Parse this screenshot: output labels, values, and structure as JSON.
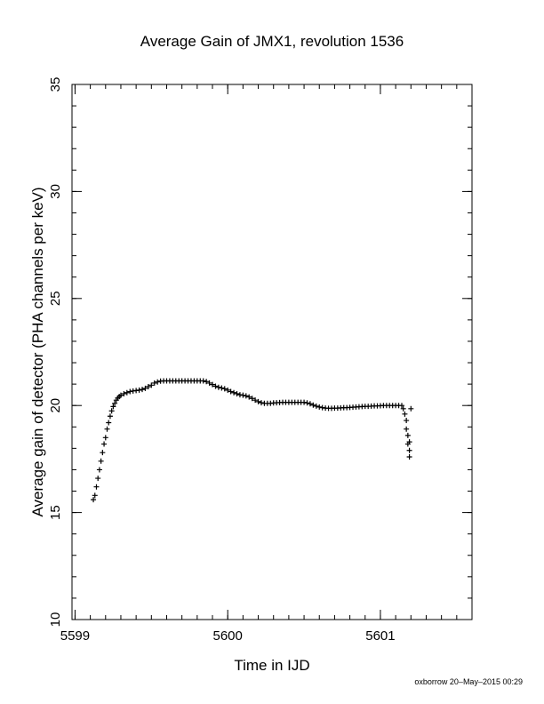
{
  "chart_data": {
    "type": "scatter",
    "title": "Average Gain of JMX1, revolution 1536",
    "xlabel": "Time in IJD",
    "ylabel": "Average gain of detector (PHA channels per keV)",
    "xlim": [
      5598.98,
      5601.6
    ],
    "ylim": [
      10,
      35
    ],
    "x_ticks": [
      5599,
      5600,
      5601
    ],
    "y_ticks": [
      10,
      15,
      20,
      25,
      30,
      35
    ],
    "x_minor_step": 0.1,
    "y_minor_step": 1,
    "grid": false,
    "legend": "none",
    "marker": "plus",
    "marker_color": "#000000",
    "series": [
      {
        "points": [
          [
            5599.12,
            15.6
          ],
          [
            5599.13,
            15.8
          ],
          [
            5599.14,
            16.2
          ],
          [
            5599.15,
            16.6
          ],
          [
            5599.16,
            17.0
          ],
          [
            5599.17,
            17.4
          ],
          [
            5599.18,
            17.8
          ],
          [
            5599.19,
            18.2
          ],
          [
            5599.2,
            18.5
          ],
          [
            5599.21,
            18.9
          ],
          [
            5599.22,
            19.2
          ],
          [
            5599.23,
            19.5
          ],
          [
            5599.24,
            19.75
          ],
          [
            5599.25,
            19.95
          ],
          [
            5599.26,
            20.1
          ],
          [
            5599.27,
            20.25
          ],
          [
            5599.28,
            20.35
          ],
          [
            5599.29,
            20.42
          ],
          [
            5599.3,
            20.48
          ],
          [
            5599.32,
            20.55
          ],
          [
            5599.34,
            20.6
          ],
          [
            5599.36,
            20.65
          ],
          [
            5599.38,
            20.68
          ],
          [
            5599.4,
            20.7
          ],
          [
            5599.42,
            20.72
          ],
          [
            5599.44,
            20.75
          ],
          [
            5599.46,
            20.8
          ],
          [
            5599.48,
            20.88
          ],
          [
            5599.5,
            20.95
          ],
          [
            5599.52,
            21.05
          ],
          [
            5599.54,
            21.1
          ],
          [
            5599.56,
            21.14
          ],
          [
            5599.58,
            21.15
          ],
          [
            5599.6,
            21.15
          ],
          [
            5599.62,
            21.15
          ],
          [
            5599.64,
            21.15
          ],
          [
            5599.66,
            21.15
          ],
          [
            5599.68,
            21.15
          ],
          [
            5599.7,
            21.15
          ],
          [
            5599.72,
            21.15
          ],
          [
            5599.74,
            21.15
          ],
          [
            5599.76,
            21.15
          ],
          [
            5599.78,
            21.15
          ],
          [
            5599.8,
            21.15
          ],
          [
            5599.82,
            21.15
          ],
          [
            5599.84,
            21.15
          ],
          [
            5599.86,
            21.12
          ],
          [
            5599.88,
            21.05
          ],
          [
            5599.9,
            20.98
          ],
          [
            5599.92,
            20.9
          ],
          [
            5599.94,
            20.85
          ],
          [
            5599.96,
            20.82
          ],
          [
            5599.98,
            20.78
          ],
          [
            5600.0,
            20.72
          ],
          [
            5600.02,
            20.65
          ],
          [
            5600.04,
            20.6
          ],
          [
            5600.06,
            20.55
          ],
          [
            5600.08,
            20.5
          ],
          [
            5600.1,
            20.48
          ],
          [
            5600.12,
            20.45
          ],
          [
            5600.14,
            20.4
          ],
          [
            5600.16,
            20.33
          ],
          [
            5600.18,
            20.25
          ],
          [
            5600.2,
            20.18
          ],
          [
            5600.22,
            20.13
          ],
          [
            5600.24,
            20.1
          ],
          [
            5600.26,
            20.1
          ],
          [
            5600.28,
            20.1
          ],
          [
            5600.3,
            20.12
          ],
          [
            5600.32,
            20.13
          ],
          [
            5600.34,
            20.14
          ],
          [
            5600.36,
            20.15
          ],
          [
            5600.38,
            20.15
          ],
          [
            5600.4,
            20.15
          ],
          [
            5600.42,
            20.15
          ],
          [
            5600.44,
            20.15
          ],
          [
            5600.46,
            20.15
          ],
          [
            5600.48,
            20.15
          ],
          [
            5600.5,
            20.15
          ],
          [
            5600.52,
            20.12
          ],
          [
            5600.54,
            20.08
          ],
          [
            5600.56,
            20.02
          ],
          [
            5600.58,
            19.97
          ],
          [
            5600.6,
            19.93
          ],
          [
            5600.62,
            19.9
          ],
          [
            5600.64,
            19.88
          ],
          [
            5600.66,
            19.87
          ],
          [
            5600.68,
            19.87
          ],
          [
            5600.7,
            19.88
          ],
          [
            5600.72,
            19.88
          ],
          [
            5600.74,
            19.89
          ],
          [
            5600.76,
            19.9
          ],
          [
            5600.78,
            19.9
          ],
          [
            5600.8,
            19.91
          ],
          [
            5600.82,
            19.92
          ],
          [
            5600.84,
            19.93
          ],
          [
            5600.86,
            19.94
          ],
          [
            5600.88,
            19.95
          ],
          [
            5600.9,
            19.96
          ],
          [
            5600.92,
            19.96
          ],
          [
            5600.94,
            19.97
          ],
          [
            5600.96,
            19.98
          ],
          [
            5600.98,
            19.98
          ],
          [
            5601.0,
            19.99
          ],
          [
            5601.02,
            20.0
          ],
          [
            5601.04,
            20.0
          ],
          [
            5601.06,
            20.0
          ],
          [
            5601.08,
            20.0
          ],
          [
            5601.1,
            20.0
          ],
          [
            5601.12,
            20.0
          ],
          [
            5601.14,
            20.0
          ],
          [
            5601.15,
            19.85
          ],
          [
            5601.16,
            19.6
          ],
          [
            5601.17,
            19.3
          ],
          [
            5601.17,
            18.9
          ],
          [
            5601.18,
            18.6
          ],
          [
            5601.18,
            18.2
          ],
          [
            5601.19,
            17.9
          ],
          [
            5601.19,
            17.6
          ],
          [
            5601.19,
            18.3
          ],
          [
            5601.2,
            19.85
          ]
        ]
      }
    ]
  },
  "footer": {
    "credit": "oxborrow 20–May–2015 00:29"
  }
}
